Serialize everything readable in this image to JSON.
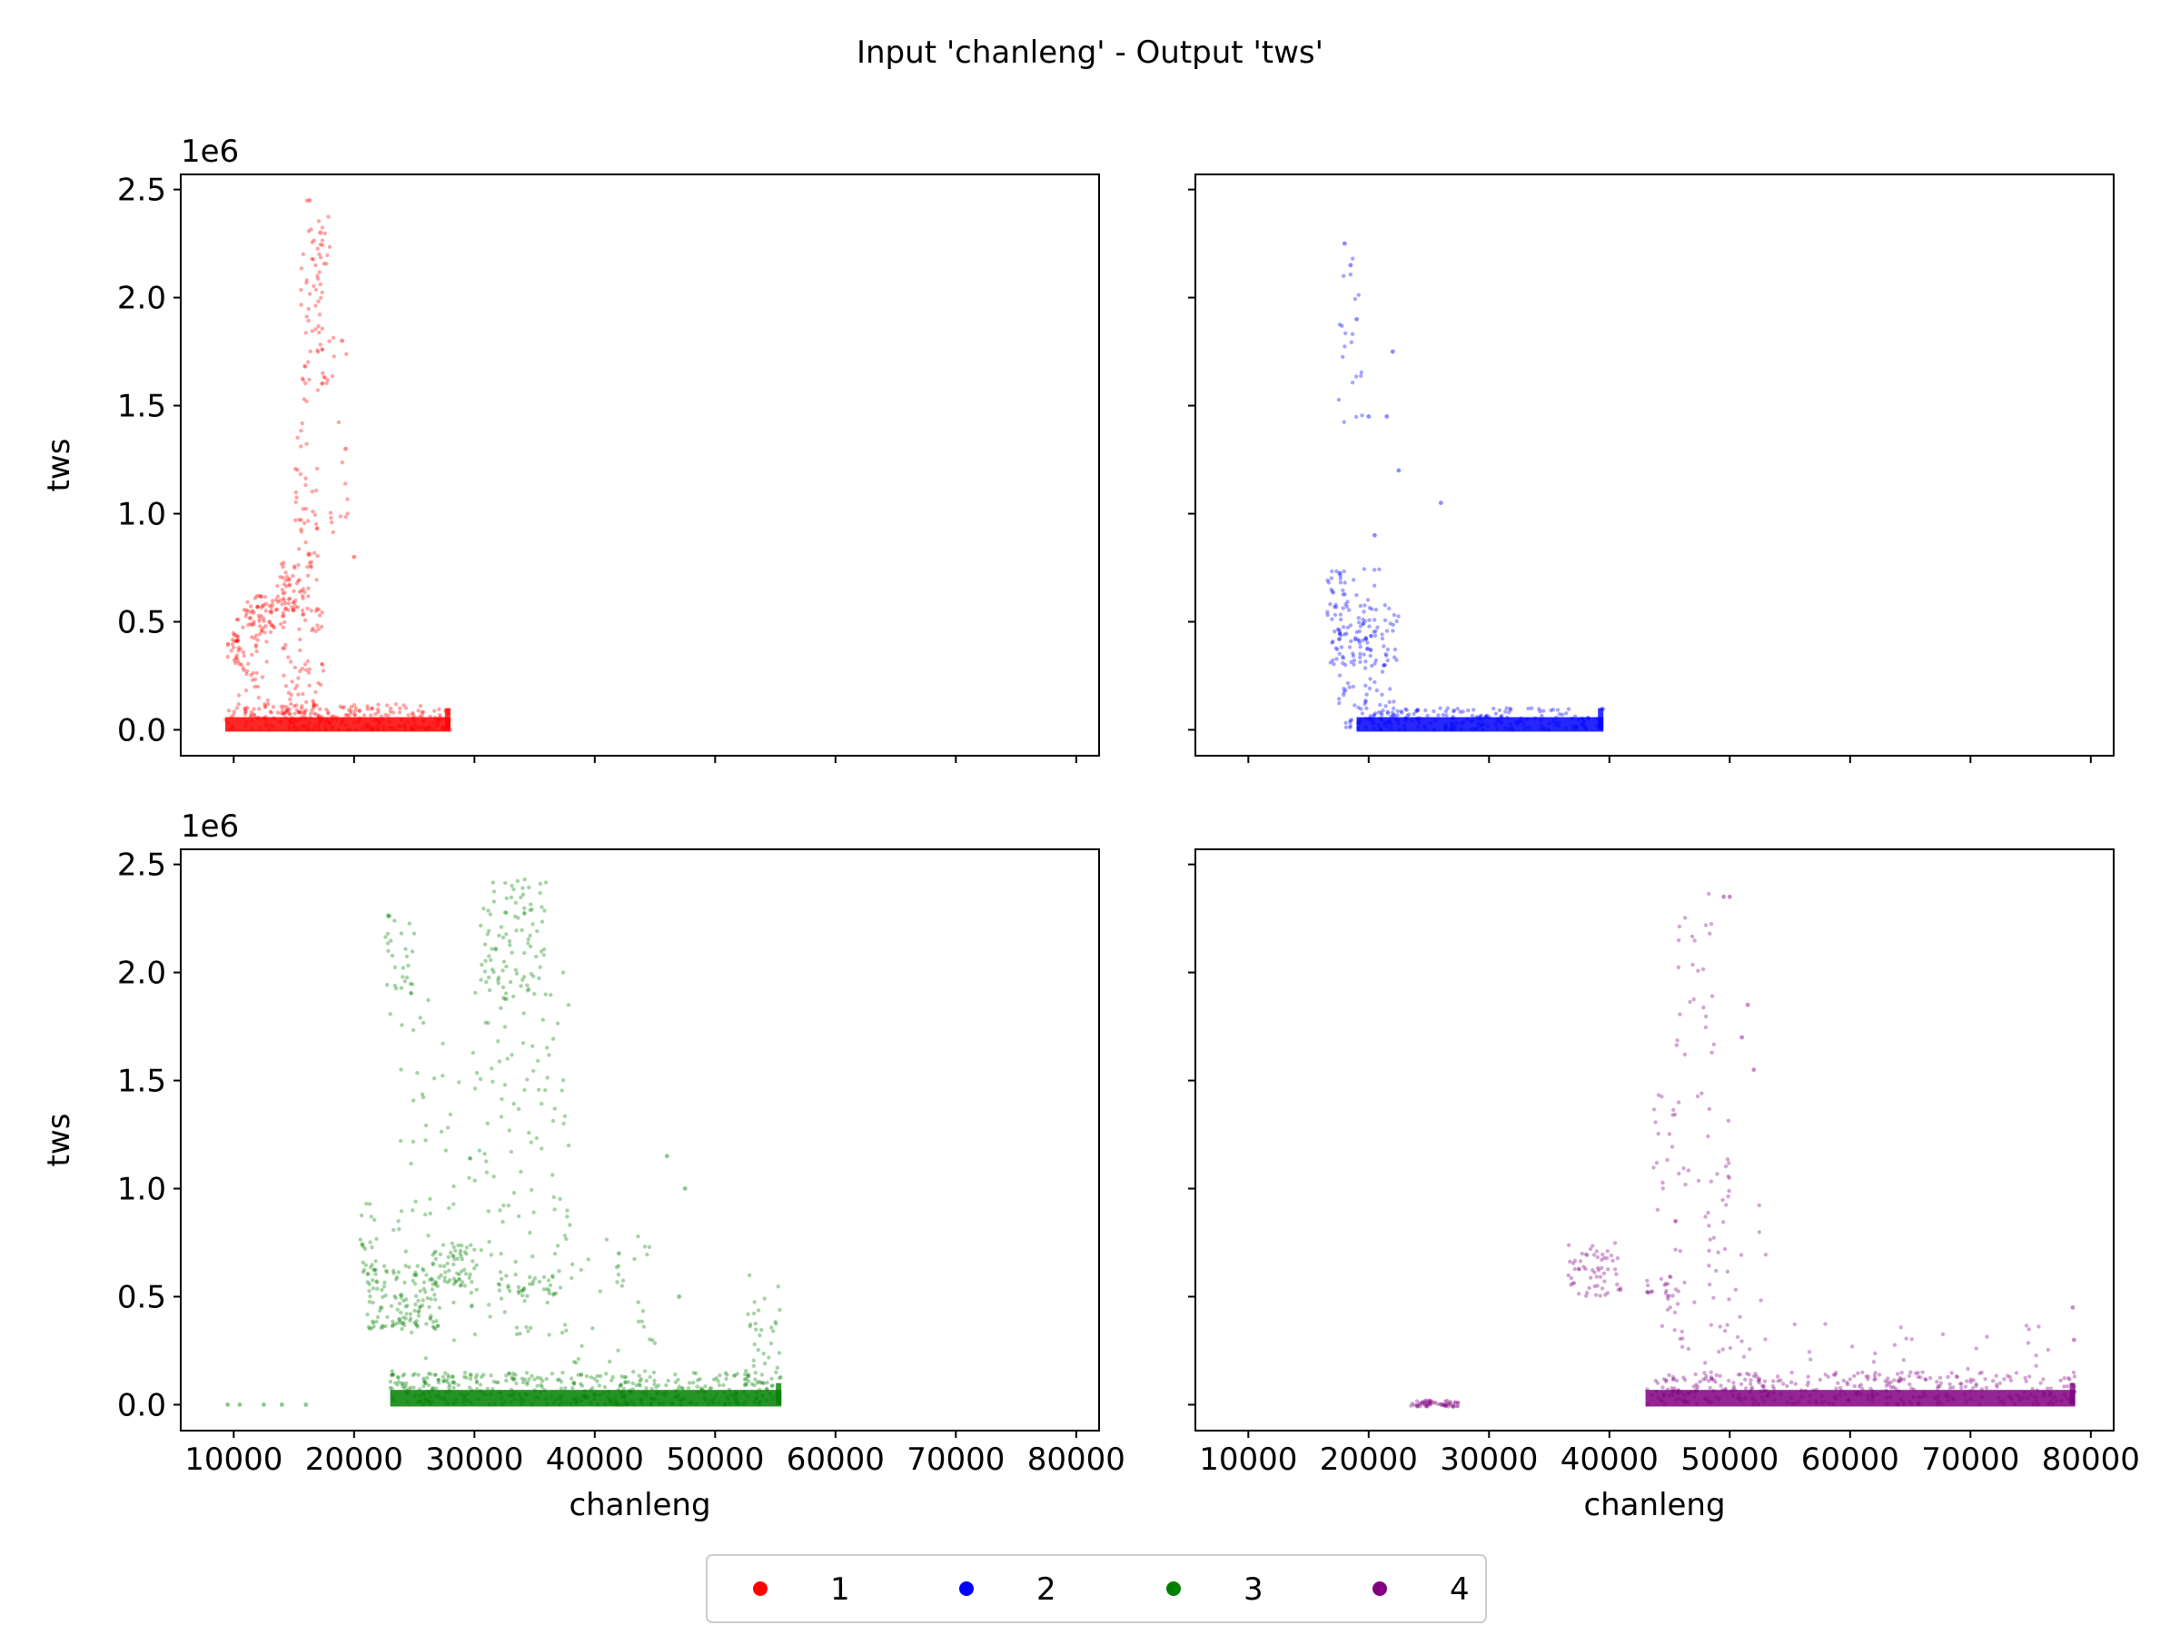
{
  "figure": {
    "title": "Input 'chanleng' - Output 'tws'"
  },
  "legend": {
    "placement": "bottom-center",
    "entries": [
      {
        "label": "1",
        "color": "#ff0000"
      },
      {
        "label": "2",
        "color": "#0000ff"
      },
      {
        "label": "3",
        "color": "#008000"
      },
      {
        "label": "4",
        "color": "#800080"
      }
    ]
  },
  "chart_data": [
    {
      "type": "scatter",
      "series_label": "1",
      "color": "#ff0000",
      "xlabel": "",
      "ylabel": "tws",
      "y_offset_text": "1e6",
      "xlim": [
        5600,
        81900
      ],
      "ylim": [
        -0.12,
        2.57
      ],
      "xticks": [
        10000,
        20000,
        30000,
        40000,
        50000,
        60000,
        70000,
        80000
      ],
      "yticks": [
        0.0,
        0.5,
        1.0,
        1.5,
        2.0,
        2.5
      ],
      "xtick_labels": [],
      "ytick_labels": [
        "0.0",
        "0.5",
        "1.0",
        "1.5",
        "2.0",
        "2.5"
      ],
      "base_band": {
        "x_range": [
          9300,
          28000
        ],
        "y_range": [
          0.0,
          0.05
        ],
        "dense": true
      },
      "clusters": [
        {
          "x": [
            9300,
            28000
          ],
          "y": [
            0.0,
            0.12
          ],
          "n": 260
        },
        {
          "x": [
            9500,
            10500
          ],
          "y": [
            0.3,
            0.45
          ],
          "n": 25
        },
        {
          "x": [
            10000,
            13000
          ],
          "y": [
            0.05,
            0.6
          ],
          "n": 60
        },
        {
          "x": [
            11000,
            14500
          ],
          "y": [
            0.45,
            0.62
          ],
          "n": 55
        },
        {
          "x": [
            13500,
            16500
          ],
          "y": [
            0.55,
            0.78
          ],
          "n": 55
        },
        {
          "x": [
            14000,
            17500
          ],
          "y": [
            0.05,
            0.7
          ],
          "n": 80
        },
        {
          "x": [
            15000,
            17000
          ],
          "y": [
            0.8,
            1.6
          ],
          "n": 40
        },
        {
          "x": [
            15500,
            18000
          ],
          "y": [
            1.6,
            2.45
          ],
          "n": 70
        },
        {
          "x": [
            18000,
            19500
          ],
          "y": [
            0.8,
            1.85
          ],
          "n": 15
        }
      ],
      "points": [
        [
          16300,
          2.45
        ],
        [
          17200,
          2.3
        ],
        [
          19000,
          1.8
        ],
        [
          19300,
          1.3
        ],
        [
          20000,
          0.8
        ]
      ]
    },
    {
      "type": "scatter",
      "series_label": "2",
      "color": "#0000ff",
      "xlabel": "",
      "ylabel": "",
      "y_offset_text": "",
      "xlim": [
        5600,
        81900
      ],
      "ylim": [
        -0.12,
        2.57
      ],
      "xticks": [
        10000,
        20000,
        30000,
        40000,
        50000,
        60000,
        70000,
        80000
      ],
      "yticks": [
        0.0,
        0.5,
        1.0,
        1.5,
        2.0,
        2.5
      ],
      "xtick_labels": [],
      "ytick_labels": [],
      "base_band": {
        "x_range": [
          19000,
          39500
        ],
        "y_range": [
          0.0,
          0.05
        ],
        "dense": true
      },
      "clusters": [
        {
          "x": [
            19000,
            39500
          ],
          "y": [
            0.0,
            0.1
          ],
          "n": 200
        },
        {
          "x": [
            16500,
            21000
          ],
          "y": [
            0.3,
            0.75
          ],
          "n": 90
        },
        {
          "x": [
            17500,
            22500
          ],
          "y": [
            0.0,
            0.6
          ],
          "n": 110
        },
        {
          "x": [
            17500,
            19500
          ],
          "y": [
            1.4,
            2.25
          ],
          "n": 20
        }
      ],
      "points": [
        [
          18000,
          2.25
        ],
        [
          18500,
          2.15
        ],
        [
          19000,
          1.9
        ],
        [
          20000,
          1.45
        ],
        [
          21500,
          1.45
        ],
        [
          22000,
          1.75
        ],
        [
          26000,
          1.05
        ],
        [
          22500,
          1.2
        ],
        [
          20500,
          0.9
        ]
      ]
    },
    {
      "type": "scatter",
      "series_label": "3",
      "color": "#008000",
      "xlabel": "chanleng",
      "ylabel": "tws",
      "y_offset_text": "1e6",
      "xlim": [
        5600,
        81900
      ],
      "ylim": [
        -0.12,
        2.57
      ],
      "xticks": [
        10000,
        20000,
        30000,
        40000,
        50000,
        60000,
        70000,
        80000
      ],
      "yticks": [
        0.0,
        0.5,
        1.0,
        1.5,
        2.0,
        2.5
      ],
      "xtick_labels": [
        "10000",
        "20000",
        "30000",
        "40000",
        "50000",
        "60000",
        "70000",
        "80000"
      ],
      "ytick_labels": [
        "0.0",
        "0.5",
        "1.0",
        "1.5",
        "2.0",
        "2.5"
      ],
      "base_band": {
        "x_range": [
          23000,
          55500
        ],
        "y_range": [
          0.0,
          0.06
        ],
        "dense": true
      },
      "clusters": [
        {
          "x": [
            23000,
            55500
          ],
          "y": [
            0.0,
            0.15
          ],
          "n": 420
        },
        {
          "x": [
            20500,
            22000
          ],
          "y": [
            0.55,
            0.95
          ],
          "n": 25
        },
        {
          "x": [
            21000,
            27000
          ],
          "y": [
            0.35,
            0.65
          ],
          "n": 120
        },
        {
          "x": [
            26500,
            30000
          ],
          "y": [
            0.55,
            0.75
          ],
          "n": 60
        },
        {
          "x": [
            22500,
            25000
          ],
          "y": [
            1.9,
            2.3
          ],
          "n": 30
        },
        {
          "x": [
            23000,
            29000
          ],
          "y": [
            0.05,
            1.9
          ],
          "n": 60
        },
        {
          "x": [
            30500,
            36000
          ],
          "y": [
            1.9,
            2.45
          ],
          "n": 90
        },
        {
          "x": [
            29500,
            38000
          ],
          "y": [
            0.3,
            2.0
          ],
          "n": 130
        },
        {
          "x": [
            32000,
            38000
          ],
          "y": [
            0.5,
            0.6
          ],
          "n": 30
        },
        {
          "x": [
            38000,
            45000
          ],
          "y": [
            0.05,
            0.8
          ],
          "n": 40
        },
        {
          "x": [
            52500,
            55500
          ],
          "y": [
            0.05,
            0.6
          ],
          "n": 40
        }
      ],
      "points": [
        [
          9500,
          0.0
        ],
        [
          10500,
          0.0
        ],
        [
          12500,
          0.0
        ],
        [
          14000,
          0.0
        ],
        [
          16000,
          0.0
        ],
        [
          46000,
          1.15
        ],
        [
          47000,
          0.5
        ],
        [
          47500,
          1.0
        ],
        [
          42000,
          0.7
        ]
      ]
    },
    {
      "type": "scatter",
      "series_label": "4",
      "color": "#800080",
      "xlabel": "chanleng",
      "ylabel": "",
      "y_offset_text": "",
      "xlim": [
        5600,
        81900
      ],
      "ylim": [
        -0.12,
        2.57
      ],
      "xticks": [
        10000,
        20000,
        30000,
        40000,
        50000,
        60000,
        70000,
        80000
      ],
      "yticks": [
        0.0,
        0.5,
        1.0,
        1.5,
        2.0,
        2.5
      ],
      "xtick_labels": [
        "10000",
        "20000",
        "30000",
        "40000",
        "50000",
        "60000",
        "70000",
        "80000"
      ],
      "ytick_labels": [],
      "base_band": {
        "x_range": [
          43000,
          78700
        ],
        "y_range": [
          0.0,
          0.06
        ],
        "dense": true
      },
      "clusters": [
        {
          "x": [
            23500,
            27500
          ],
          "y": [
            -0.01,
            0.02
          ],
          "n": 60
        },
        {
          "x": [
            43000,
            78700
          ],
          "y": [
            0.0,
            0.15
          ],
          "n": 360
        },
        {
          "x": [
            36500,
            41000
          ],
          "y": [
            0.5,
            0.75
          ],
          "n": 60
        },
        {
          "x": [
            43000,
            46000
          ],
          "y": [
            0.45,
            0.6
          ],
          "n": 20
        },
        {
          "x": [
            43500,
            50000
          ],
          "y": [
            0.1,
            1.5
          ],
          "n": 80
        },
        {
          "x": [
            45500,
            49000
          ],
          "y": [
            1.6,
            2.4
          ],
          "n": 25
        },
        {
          "x": [
            49000,
            53000
          ],
          "y": [
            0.2,
            1.0
          ],
          "n": 20
        },
        {
          "x": [
            55000,
            78700
          ],
          "y": [
            0.1,
            0.4
          ],
          "n": 35
        }
      ],
      "points": [
        [
          49500,
          2.35
        ],
        [
          50000,
          2.35
        ],
        [
          51500,
          1.85
        ],
        [
          51000,
          1.7
        ],
        [
          52000,
          1.55
        ],
        [
          78500,
          0.45
        ],
        [
          78600,
          0.3
        ]
      ]
    }
  ]
}
